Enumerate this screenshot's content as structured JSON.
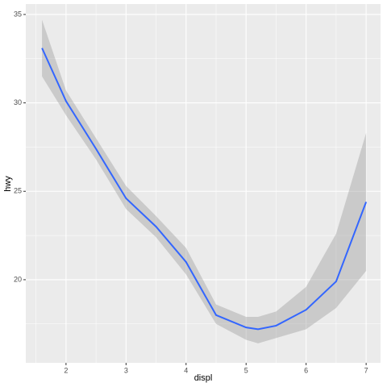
{
  "chart_data": {
    "type": "line",
    "xlabel": "displ",
    "ylabel": "hwy",
    "x": [
      1.6,
      2,
      2.5,
      3,
      3.5,
      4,
      4.5,
      5,
      5.2,
      5.5,
      6,
      6.5,
      7
    ],
    "series": [
      {
        "color": "#3366ff",
        "values": [
          33.1,
          30.1,
          27.4,
          24.6,
          23.0,
          21.0,
          18.0,
          17.3,
          17.2,
          17.4,
          18.3,
          19.9,
          24.4
        ],
        "band_upper": [
          34.7,
          30.7,
          28.0,
          25.3,
          23.6,
          21.8,
          18.6,
          17.9,
          17.9,
          18.2,
          19.6,
          22.6,
          28.3
        ],
        "band_lower": [
          31.5,
          29.3,
          26.8,
          24.0,
          22.4,
          20.3,
          17.5,
          16.6,
          16.4,
          16.7,
          17.2,
          18.4,
          20.5
        ],
        "band_color": "#999999"
      }
    ],
    "xlim": [
      1.33,
      7.24
    ],
    "ylim": [
      15.3,
      35.59
    ],
    "xticks": [
      2,
      3,
      4,
      5,
      6,
      7
    ],
    "yticks": [
      20,
      25,
      30,
      35
    ],
    "minor_xticks": [
      1.5,
      2.5,
      3.5,
      4.5,
      5.5,
      6.5
    ],
    "minor_yticks": [
      17.5,
      22.5,
      27.5,
      32.5
    ],
    "grid": true,
    "panel_color": "#ebebeb"
  }
}
